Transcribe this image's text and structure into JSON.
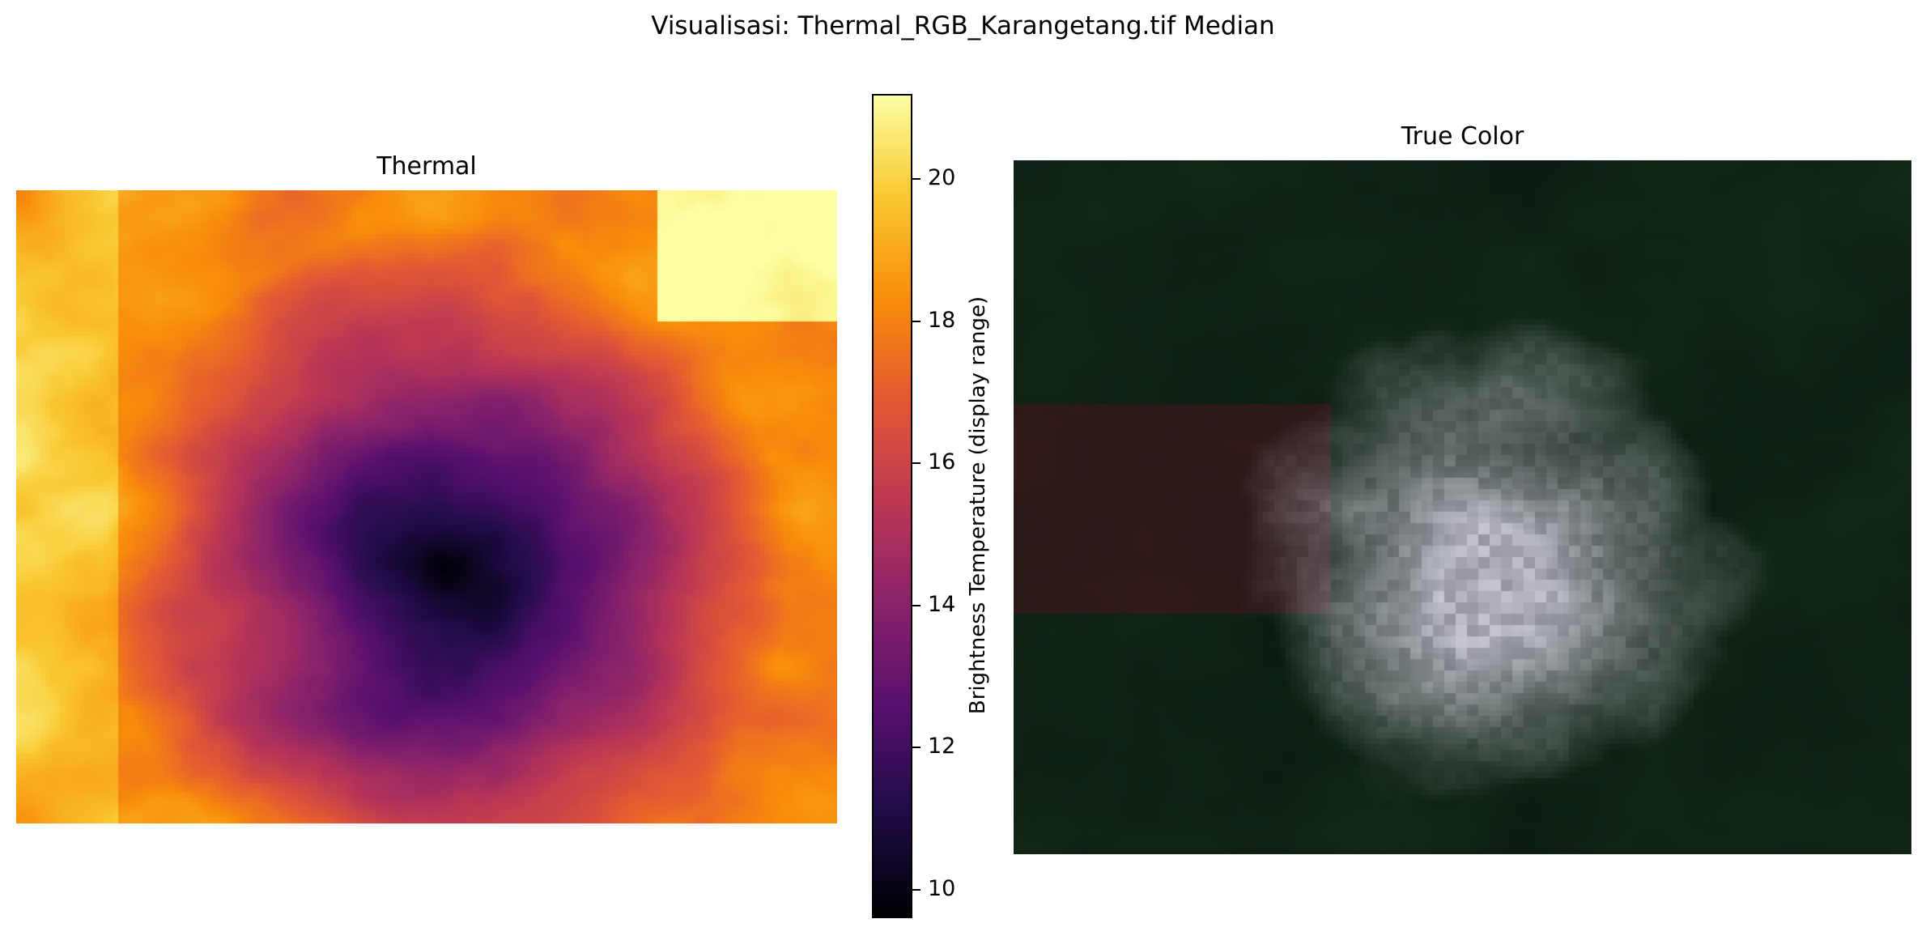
{
  "figure": {
    "suptitle": "Visualisasi: Thermal_RGB_Karangetang.tif Median"
  },
  "thermal_panel": {
    "title": "Thermal",
    "colormap": "inferno"
  },
  "colorbar": {
    "label": "Brightness Temperature (display range)",
    "ticks": [
      "10",
      "12",
      "14",
      "16",
      "18",
      "20"
    ],
    "range": [
      9.6,
      21.2
    ]
  },
  "truecolor_panel": {
    "title": "True Color"
  },
  "colors": {
    "background": "#ffffff",
    "text": "#000000"
  }
}
